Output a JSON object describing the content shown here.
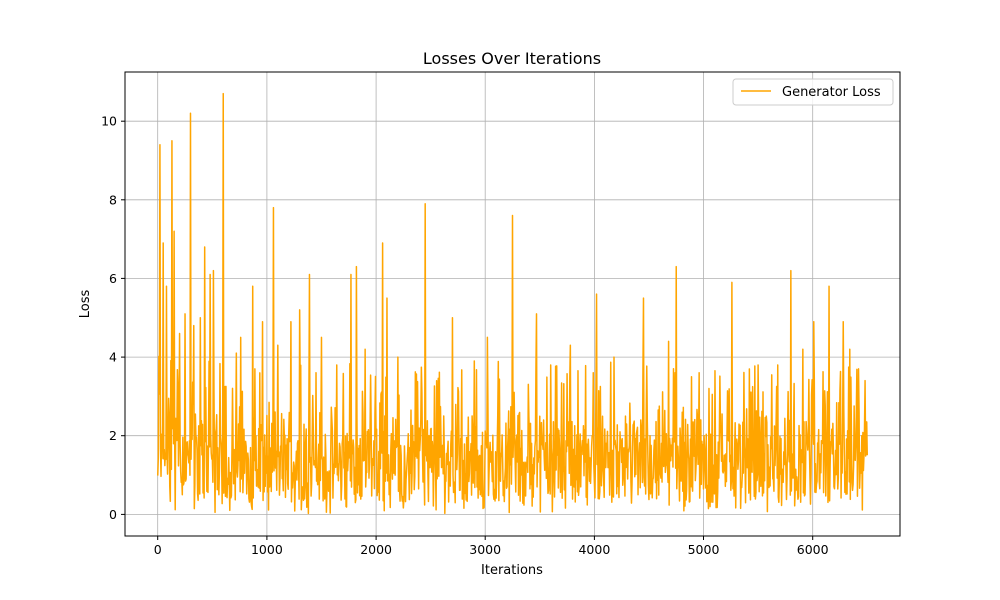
{
  "chart_data": {
    "type": "line",
    "title": "Losses Over Iterations",
    "xlabel": "Iterations",
    "ylabel": "Loss",
    "xlim": [
      -300,
      6800
    ],
    "ylim": [
      -0.55,
      11.25
    ],
    "xticks": [
      0,
      1000,
      2000,
      3000,
      4000,
      5000,
      6000
    ],
    "yticks": [
      0,
      2,
      4,
      6,
      8,
      10
    ],
    "grid": true,
    "legend_position": "top-right",
    "series": [
      {
        "name": "Generator Loss",
        "color": "#FFA500",
        "x_start": 0,
        "x_end": 6500,
        "x_step": 5,
        "baseline_range": [
          0.3,
          3.0
        ],
        "peaks": [
          [
            20,
            9.4
          ],
          [
            50,
            6.9
          ],
          [
            80,
            5.8
          ],
          [
            130,
            9.5
          ],
          [
            150,
            7.2
          ],
          [
            200,
            4.6
          ],
          [
            250,
            5.1
          ],
          [
            300,
            10.2
          ],
          [
            330,
            4.8
          ],
          [
            390,
            5.0
          ],
          [
            430,
            6.8
          ],
          [
            480,
            6.1
          ],
          [
            510,
            6.2
          ],
          [
            600,
            10.7
          ],
          [
            720,
            4.1
          ],
          [
            760,
            4.5
          ],
          [
            870,
            5.8
          ],
          [
            960,
            4.9
          ],
          [
            1060,
            7.8
          ],
          [
            1100,
            4.3
          ],
          [
            1220,
            4.9
          ],
          [
            1300,
            5.2
          ],
          [
            1390,
            6.1
          ],
          [
            1500,
            4.5
          ],
          [
            1640,
            3.8
          ],
          [
            1770,
            6.1
          ],
          [
            1820,
            6.3
          ],
          [
            1900,
            4.2
          ],
          [
            2060,
            6.9
          ],
          [
            2100,
            5.5
          ],
          [
            2200,
            4.0
          ],
          [
            2450,
            7.9
          ],
          [
            2700,
            5.0
          ],
          [
            2900,
            3.9
          ],
          [
            3020,
            4.5
          ],
          [
            3250,
            7.6
          ],
          [
            3470,
            5.1
          ],
          [
            3600,
            3.8
          ],
          [
            3780,
            4.3
          ],
          [
            3990,
            3.6
          ],
          [
            4020,
            5.6
          ],
          [
            4180,
            4.0
          ],
          [
            4450,
            5.5
          ],
          [
            4680,
            4.4
          ],
          [
            4750,
            6.3
          ],
          [
            4960,
            3.6
          ],
          [
            5050,
            3.2
          ],
          [
            5260,
            5.9
          ],
          [
            5500,
            3.8
          ],
          [
            5680,
            3.8
          ],
          [
            5800,
            6.2
          ],
          [
            5910,
            4.2
          ],
          [
            6010,
            4.9
          ],
          [
            6150,
            5.8
          ],
          [
            6280,
            4.9
          ],
          [
            6340,
            4.2
          ],
          [
            6420,
            3.7
          ],
          [
            6480,
            3.4
          ]
        ]
      }
    ]
  }
}
